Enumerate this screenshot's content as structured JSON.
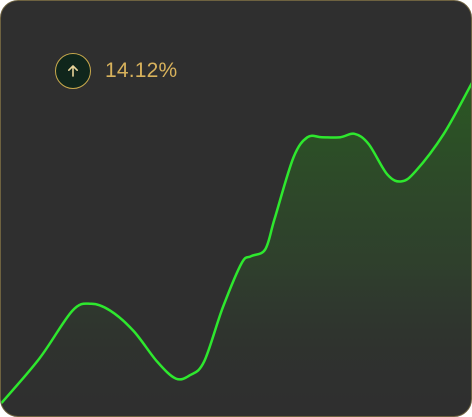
{
  "widget": {
    "change_value": "14.12%",
    "change_direction_icon": "arrow-up-icon",
    "colors": {
      "card_background": "#2f2f2f",
      "card_border": "#6e6240",
      "accent_gold": "#d8b25c",
      "icon_background": "#10261c",
      "line": "#2ee82e",
      "area_fill_top": "#2a5a22"
    }
  },
  "chart_data": {
    "type": "area",
    "title": "",
    "xlabel": "",
    "ylabel": "",
    "grid": false,
    "legend": "none",
    "xlim": [
      0,
      100
    ],
    "ylim": [
      0,
      100
    ],
    "series": [
      {
        "values": [
          {
            "x": 0,
            "y": 4
          },
          {
            "x": 8,
            "y": 17
          },
          {
            "x": 15,
            "y": 31
          },
          {
            "x": 19,
            "y": 33
          },
          {
            "x": 23,
            "y": 31
          },
          {
            "x": 28,
            "y": 25
          },
          {
            "x": 33,
            "y": 16
          },
          {
            "x": 37,
            "y": 11
          },
          {
            "x": 40,
            "y": 12
          },
          {
            "x": 43,
            "y": 16
          },
          {
            "x": 47,
            "y": 32
          },
          {
            "x": 51,
            "y": 45
          },
          {
            "x": 53,
            "y": 47
          },
          {
            "x": 56,
            "y": 49
          },
          {
            "x": 58,
            "y": 58
          },
          {
            "x": 62,
            "y": 76
          },
          {
            "x": 65,
            "y": 82
          },
          {
            "x": 68,
            "y": 82
          },
          {
            "x": 72,
            "y": 82
          },
          {
            "x": 75,
            "y": 83
          },
          {
            "x": 78,
            "y": 80
          },
          {
            "x": 82,
            "y": 71
          },
          {
            "x": 85,
            "y": 69
          },
          {
            "x": 88,
            "y": 72
          },
          {
            "x": 94,
            "y": 83
          },
          {
            "x": 100,
            "y": 98
          }
        ]
      }
    ]
  }
}
